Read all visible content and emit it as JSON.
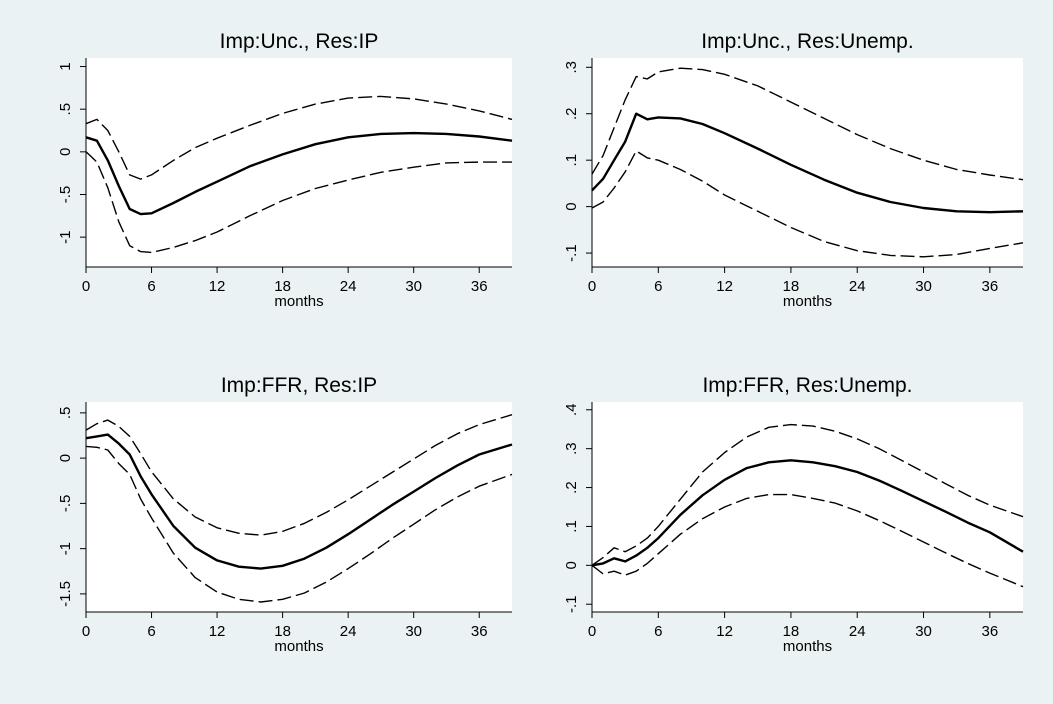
{
  "figure": {
    "background_color": "#eaf2f3",
    "plot_background_color": "#ffffff",
    "line_color": "#000000"
  },
  "chart_data": [
    {
      "type": "line",
      "title": "Imp:Unc., Res:IP",
      "xlabel": "months",
      "ylabel": "",
      "xlim": [
        0,
        39
      ],
      "ylim": [
        -1.35,
        1.1
      ],
      "xticks": [
        0,
        6,
        12,
        18,
        24,
        30,
        36
      ],
      "xtick_labels": [
        "0",
        "6",
        "12",
        "18",
        "24",
        "30",
        "36"
      ],
      "yticks": [
        1,
        0.5,
        0,
        -0.5,
        -1
      ],
      "ytick_labels": [
        "1",
        ".5",
        "0",
        "-.5",
        "-1"
      ],
      "grid": false,
      "series": [
        {
          "role": "upper",
          "style": "dashed",
          "x": [
            0,
            1,
            2,
            3,
            4,
            5,
            6,
            8,
            10,
            12,
            15,
            18,
            21,
            24,
            27,
            30,
            33,
            36,
            39
          ],
          "y": [
            0.33,
            0.38,
            0.25,
            0.0,
            -0.27,
            -0.32,
            -0.27,
            -0.1,
            0.05,
            0.16,
            0.31,
            0.45,
            0.56,
            0.63,
            0.65,
            0.62,
            0.56,
            0.48,
            0.38
          ]
        },
        {
          "role": "estimate",
          "style": "solid",
          "x": [
            0,
            1,
            2,
            3,
            4,
            5,
            6,
            8,
            10,
            12,
            15,
            18,
            21,
            24,
            27,
            30,
            33,
            36,
            39
          ],
          "y": [
            0.17,
            0.13,
            -0.1,
            -0.4,
            -0.67,
            -0.73,
            -0.72,
            -0.6,
            -0.47,
            -0.35,
            -0.17,
            -0.03,
            0.09,
            0.17,
            0.21,
            0.22,
            0.21,
            0.18,
            0.13
          ]
        },
        {
          "role": "lower",
          "style": "dashed",
          "x": [
            0,
            1,
            2,
            3,
            4,
            5,
            6,
            8,
            10,
            12,
            15,
            18,
            21,
            24,
            27,
            30,
            33,
            36,
            39
          ],
          "y": [
            0.0,
            -0.12,
            -0.42,
            -0.82,
            -1.1,
            -1.17,
            -1.18,
            -1.12,
            -1.04,
            -0.94,
            -0.75,
            -0.57,
            -0.43,
            -0.33,
            -0.24,
            -0.18,
            -0.13,
            -0.12,
            -0.12
          ]
        }
      ]
    },
    {
      "type": "line",
      "title": "Imp:Unc., Res:Unemp.",
      "xlabel": "months",
      "ylabel": "",
      "xlim": [
        0,
        39
      ],
      "ylim": [
        -0.13,
        0.32
      ],
      "xticks": [
        0,
        6,
        12,
        18,
        24,
        30,
        36
      ],
      "xtick_labels": [
        "0",
        "6",
        "12",
        "18",
        "24",
        "30",
        "36"
      ],
      "yticks": [
        0.3,
        0.2,
        0.1,
        0,
        -0.1
      ],
      "ytick_labels": [
        ".3",
        ".2",
        ".1",
        "0",
        "-.1"
      ],
      "grid": false,
      "series": [
        {
          "role": "upper",
          "style": "dashed",
          "x": [
            0,
            1,
            2,
            3,
            4,
            5,
            6,
            8,
            10,
            12,
            15,
            18,
            21,
            24,
            27,
            30,
            33,
            36,
            39
          ],
          "y": [
            0.07,
            0.11,
            0.17,
            0.23,
            0.28,
            0.275,
            0.29,
            0.298,
            0.295,
            0.285,
            0.26,
            0.225,
            0.19,
            0.155,
            0.125,
            0.1,
            0.08,
            0.068,
            0.058
          ]
        },
        {
          "role": "estimate",
          "style": "solid",
          "x": [
            0,
            1,
            2,
            3,
            4,
            5,
            6,
            8,
            10,
            12,
            15,
            18,
            21,
            24,
            27,
            30,
            33,
            36,
            39
          ],
          "y": [
            0.035,
            0.06,
            0.1,
            0.14,
            0.2,
            0.188,
            0.192,
            0.19,
            0.178,
            0.158,
            0.125,
            0.09,
            0.058,
            0.03,
            0.01,
            -0.003,
            -0.01,
            -0.012,
            -0.01
          ]
        },
        {
          "role": "lower",
          "style": "dashed",
          "x": [
            0,
            1,
            2,
            3,
            4,
            5,
            6,
            8,
            10,
            12,
            15,
            18,
            21,
            24,
            27,
            30,
            33,
            36,
            39
          ],
          "y": [
            -0.003,
            0.01,
            0.04,
            0.075,
            0.12,
            0.105,
            0.1,
            0.08,
            0.055,
            0.025,
            -0.01,
            -0.045,
            -0.075,
            -0.095,
            -0.105,
            -0.108,
            -0.103,
            -0.09,
            -0.078
          ]
        }
      ]
    },
    {
      "type": "line",
      "title": "Imp:FFR, Res:IP",
      "xlabel": "months",
      "ylabel": "",
      "xlim": [
        0,
        39
      ],
      "ylim": [
        -1.7,
        0.62
      ],
      "xticks": [
        0,
        6,
        12,
        18,
        24,
        30,
        36
      ],
      "xtick_labels": [
        "0",
        "6",
        "12",
        "18",
        "24",
        "30",
        "36"
      ],
      "yticks": [
        0.5,
        0,
        -0.5,
        -1,
        -1.5
      ],
      "ytick_labels": [
        ".5",
        "0",
        "-.5",
        "-1",
        "-1.5"
      ],
      "grid": false,
      "series": [
        {
          "role": "upper",
          "style": "dashed",
          "x": [
            0,
            1,
            2,
            3,
            4,
            5,
            6,
            8,
            10,
            12,
            14,
            16,
            18,
            20,
            22,
            24,
            26,
            28,
            30,
            32,
            34,
            36,
            39
          ],
          "y": [
            0.31,
            0.38,
            0.42,
            0.35,
            0.24,
            0.05,
            -0.15,
            -0.45,
            -0.65,
            -0.77,
            -0.83,
            -0.85,
            -0.81,
            -0.72,
            -0.6,
            -0.46,
            -0.31,
            -0.16,
            -0.01,
            0.14,
            0.27,
            0.37,
            0.48
          ]
        },
        {
          "role": "estimate",
          "style": "solid",
          "x": [
            0,
            1,
            2,
            3,
            4,
            5,
            6,
            8,
            10,
            12,
            14,
            16,
            18,
            20,
            22,
            24,
            26,
            28,
            30,
            32,
            34,
            36,
            39
          ],
          "y": [
            0.22,
            0.24,
            0.26,
            0.16,
            0.04,
            -0.2,
            -0.4,
            -0.75,
            -0.99,
            -1.13,
            -1.2,
            -1.22,
            -1.19,
            -1.11,
            -0.99,
            -0.84,
            -0.68,
            -0.52,
            -0.37,
            -0.22,
            -0.08,
            0.04,
            0.15
          ]
        },
        {
          "role": "lower",
          "style": "dashed",
          "x": [
            0,
            1,
            2,
            3,
            4,
            5,
            6,
            8,
            10,
            12,
            14,
            16,
            18,
            20,
            22,
            24,
            26,
            28,
            30,
            32,
            34,
            36,
            39
          ],
          "y": [
            0.13,
            0.12,
            0.09,
            -0.06,
            -0.18,
            -0.45,
            -0.66,
            -1.05,
            -1.32,
            -1.48,
            -1.56,
            -1.59,
            -1.56,
            -1.49,
            -1.37,
            -1.22,
            -1.06,
            -0.89,
            -0.73,
            -0.57,
            -0.43,
            -0.31,
            -0.18
          ]
        }
      ]
    },
    {
      "type": "line",
      "title": "Imp:FFR, Res:Unemp.",
      "xlabel": "months",
      "ylabel": "",
      "xlim": [
        0,
        39
      ],
      "ylim": [
        -0.12,
        0.42
      ],
      "xticks": [
        0,
        6,
        12,
        18,
        24,
        30,
        36
      ],
      "xtick_labels": [
        "0",
        "6",
        "12",
        "18",
        "24",
        "30",
        "36"
      ],
      "yticks": [
        0.4,
        0.3,
        0.2,
        0.1,
        0,
        -0.1
      ],
      "ytick_labels": [
        ".4",
        ".3",
        ".2",
        ".1",
        "0",
        "-.1"
      ],
      "grid": false,
      "series": [
        {
          "role": "upper",
          "style": "dashed",
          "x": [
            0,
            1,
            2,
            3,
            4,
            5,
            6,
            8,
            10,
            12,
            14,
            16,
            18,
            20,
            22,
            24,
            26,
            28,
            30,
            32,
            34,
            36,
            39
          ],
          "y": [
            0.0,
            0.02,
            0.045,
            0.035,
            0.05,
            0.07,
            0.1,
            0.17,
            0.24,
            0.29,
            0.33,
            0.355,
            0.362,
            0.358,
            0.345,
            0.325,
            0.3,
            0.27,
            0.24,
            0.21,
            0.18,
            0.155,
            0.125
          ]
        },
        {
          "role": "estimate",
          "style": "solid",
          "x": [
            0,
            1,
            2,
            3,
            4,
            5,
            6,
            8,
            10,
            12,
            14,
            16,
            18,
            20,
            22,
            24,
            26,
            28,
            30,
            32,
            34,
            36,
            39
          ],
          "y": [
            0.0,
            0.005,
            0.018,
            0.01,
            0.025,
            0.045,
            0.07,
            0.13,
            0.18,
            0.22,
            0.25,
            0.265,
            0.27,
            0.265,
            0.255,
            0.24,
            0.218,
            0.192,
            0.165,
            0.138,
            0.11,
            0.085,
            0.035
          ]
        },
        {
          "role": "lower",
          "style": "dashed",
          "x": [
            0,
            1,
            2,
            3,
            4,
            5,
            6,
            8,
            10,
            12,
            14,
            16,
            18,
            20,
            22,
            24,
            26,
            28,
            30,
            32,
            34,
            36,
            39
          ],
          "y": [
            0.0,
            -0.022,
            -0.015,
            -0.025,
            -0.015,
            0.005,
            0.03,
            0.08,
            0.12,
            0.15,
            0.172,
            0.182,
            0.182,
            0.172,
            0.16,
            0.14,
            0.115,
            0.088,
            0.06,
            0.032,
            0.005,
            -0.02,
            -0.055
          ]
        }
      ]
    }
  ]
}
